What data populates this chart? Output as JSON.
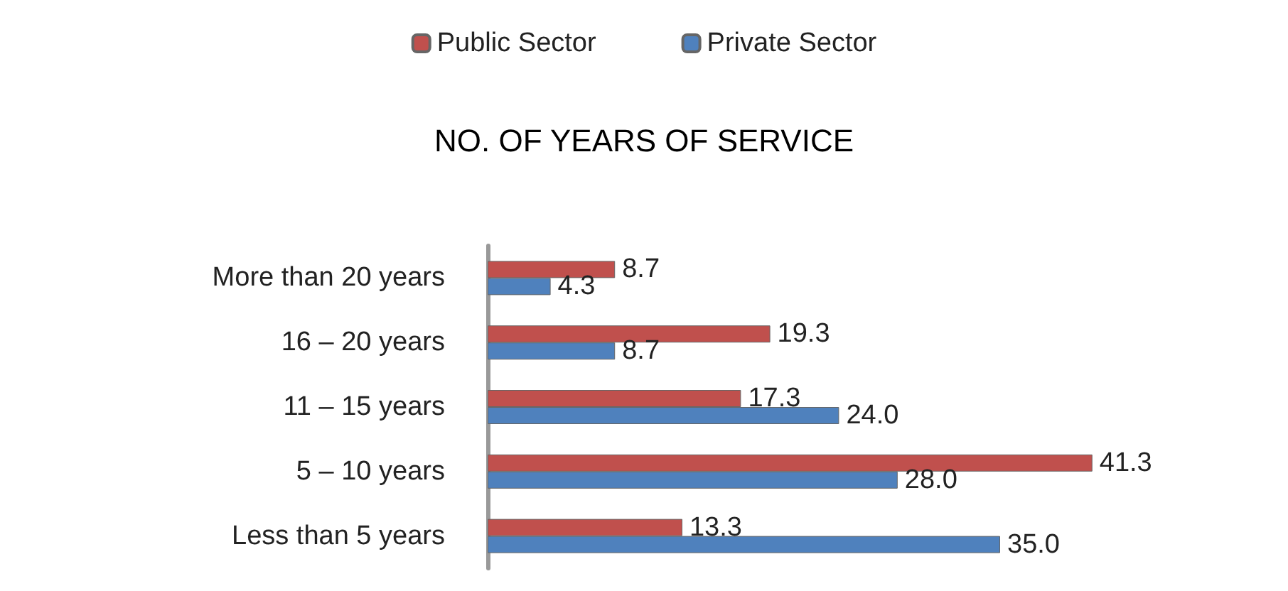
{
  "chart_data": {
    "type": "bar",
    "orientation": "horizontal",
    "title": "NO. OF YEARS OF SERVICE",
    "categories": [
      "More than 20 years",
      "16 – 20 years",
      "11 – 15 years",
      "5 – 10 years",
      "Less than 5 years"
    ],
    "series": [
      {
        "name": "Public Sector",
        "color": "#c0504d",
        "values": [
          8.7,
          19.3,
          17.3,
          41.3,
          13.3
        ],
        "value_labels": [
          "8.7",
          "19.3",
          "17.3",
          "41.3",
          "13.3"
        ]
      },
      {
        "name": "Private Sector",
        "color": "#4f81bd",
        "values": [
          4.3,
          8.7,
          24.0,
          28.0,
          35.0
        ],
        "value_labels": [
          "4.3",
          "8.7",
          "24.0",
          "28.0",
          "35.0"
        ]
      }
    ],
    "legend": "top"
  }
}
